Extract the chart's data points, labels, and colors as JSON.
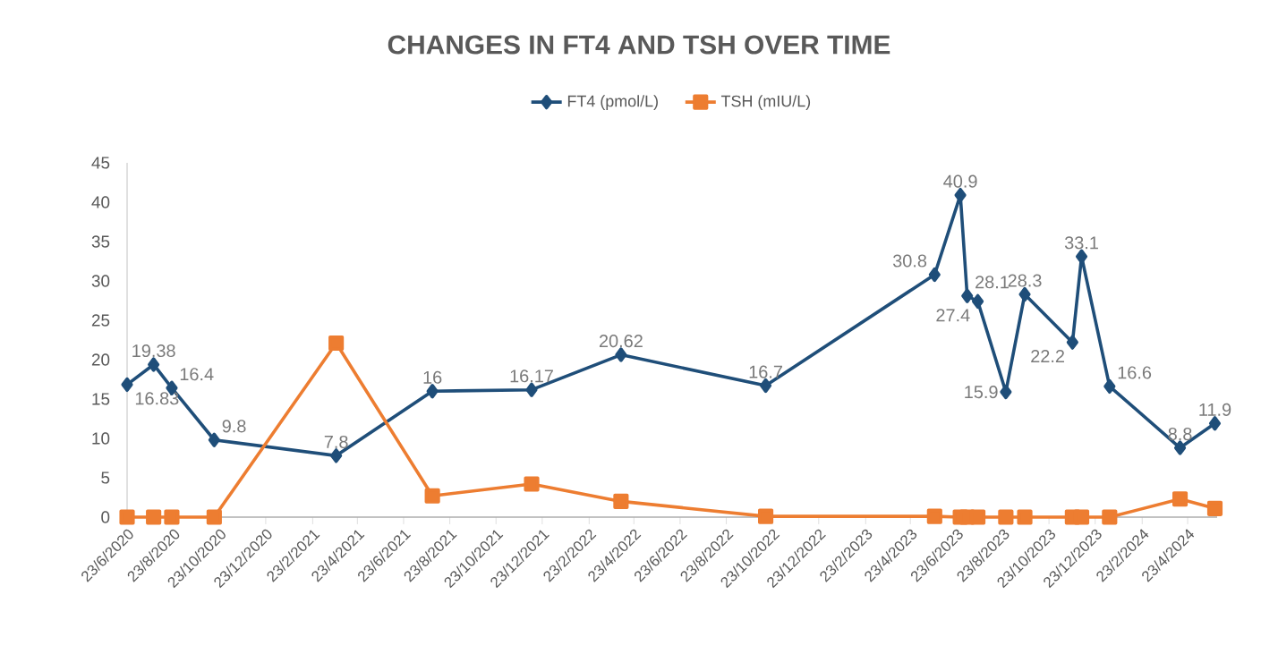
{
  "chart_data": {
    "type": "line",
    "title": "CHANGES IN FT4 AND TSH OVER TIME",
    "x": [
      "2020-06-23",
      "2020-07-28",
      "2020-08-21",
      "2020-10-16",
      "2021-03-26",
      "2021-07-31",
      "2021-12-09",
      "2022-04-06",
      "2022-10-14",
      "2023-05-25",
      "2023-06-28",
      "2023-07-07",
      "2023-07-21",
      "2023-08-27",
      "2023-09-21",
      "2023-11-23",
      "2023-12-05",
      "2024-01-11",
      "2024-04-13",
      "2024-05-29"
    ],
    "series": [
      {
        "name": "FT4 (pmol/L)",
        "color": "#1f4e79",
        "marker": "diamond",
        "values": [
          16.83,
          19.38,
          16.4,
          9.8,
          7.8,
          16,
          16.17,
          20.62,
          16.7,
          30.8,
          40.9,
          28.1,
          27.4,
          15.9,
          28.3,
          22.2,
          33.1,
          16.6,
          8.8,
          11.9
        ],
        "value_labels": [
          "16.83",
          "19.38",
          "16.4",
          "9.8",
          "7.8",
          "16",
          "16.17",
          "20.62",
          "16.7",
          "30.8",
          "40.9",
          "28.1",
          "27.4",
          "15.9",
          "28.3",
          "22.2",
          "33.1",
          "16.6",
          "8.8",
          "11.9"
        ]
      },
      {
        "name": "TSH (mIU/L)",
        "color": "#ed7d31",
        "marker": "square",
        "values": [
          0,
          0,
          0,
          0,
          22.1,
          2.7,
          4.2,
          2.0,
          0.1,
          0.1,
          0,
          0,
          0,
          0,
          0,
          0,
          0,
          0,
          2.3,
          1.1
        ]
      }
    ],
    "xlim": [
      "2020-06-23",
      "2024-06-01"
    ],
    "xticks": [
      {
        "value": "2020-06-23",
        "label": "23/6/2020"
      },
      {
        "value": "2020-08-23",
        "label": "23/8/2020"
      },
      {
        "value": "2020-10-23",
        "label": "23/10/2020"
      },
      {
        "value": "2020-12-23",
        "label": "23/12/2020"
      },
      {
        "value": "2021-02-23",
        "label": "23/2/2021"
      },
      {
        "value": "2021-04-23",
        "label": "23/4/2021"
      },
      {
        "value": "2021-06-23",
        "label": "23/6/2021"
      },
      {
        "value": "2021-08-23",
        "label": "23/8/2021"
      },
      {
        "value": "2021-10-23",
        "label": "23/10/2021"
      },
      {
        "value": "2021-12-23",
        "label": "23/12/2021"
      },
      {
        "value": "2022-02-23",
        "label": "23/2/2022"
      },
      {
        "value": "2022-04-23",
        "label": "23/4/2022"
      },
      {
        "value": "2022-06-23",
        "label": "23/6/2022"
      },
      {
        "value": "2022-08-23",
        "label": "23/8/2022"
      },
      {
        "value": "2022-10-23",
        "label": "23/10/2022"
      },
      {
        "value": "2022-12-23",
        "label": "23/12/2022"
      },
      {
        "value": "2023-02-23",
        "label": "23/2/2023"
      },
      {
        "value": "2023-04-23",
        "label": "23/4/2023"
      },
      {
        "value": "2023-06-23",
        "label": "23/6/2023"
      },
      {
        "value": "2023-08-23",
        "label": "23/8/2023"
      },
      {
        "value": "2023-10-23",
        "label": "23/10/2023"
      },
      {
        "value": "2023-12-23",
        "label": "23/12/2023"
      },
      {
        "value": "2024-02-23",
        "label": "23/2/2024"
      },
      {
        "value": "2024-04-23",
        "label": "23/4/2024"
      }
    ],
    "ylim": [
      0,
      45
    ],
    "yticks": [
      0,
      5,
      10,
      15,
      20,
      25,
      30,
      35,
      40,
      45
    ],
    "legend": "top"
  }
}
